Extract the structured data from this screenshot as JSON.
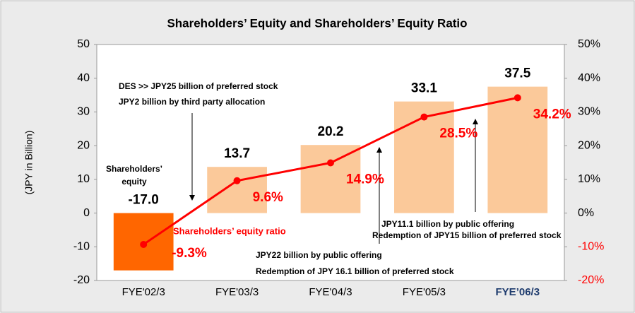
{
  "chart_data": {
    "type": "bar_line",
    "title": "Shareholders’ Equity and Shareholders’ Equity Ratio",
    "y_label": "(JPY in Billion)",
    "categories": [
      "FYE'02/3",
      "FYE'03/3",
      "FYE'04/3",
      "FYE'05/3",
      "FYE’06/3"
    ],
    "category_label_colors": [
      "#000000",
      "#000000",
      "#000000",
      "#000000",
      "#1f3c6e"
    ],
    "series": [
      {
        "name": "Shareholders’ equity",
        "type": "bar",
        "colors": [
          "#ff6600",
          "#fbc99a",
          "#fbc99a",
          "#fbc99a",
          "#fbc99a"
        ],
        "values": [
          -17.0,
          13.7,
          20.2,
          33.1,
          37.5
        ],
        "value_labels": [
          "-17.0",
          "13.7",
          "20.2",
          "33.1",
          "37.5"
        ]
      },
      {
        "name": "Shareholders’ equity ratio",
        "type": "line",
        "axis": "y2",
        "color": "#ff0000",
        "values": [
          -9.3,
          9.6,
          14.9,
          28.5,
          34.2
        ],
        "value_labels": [
          "-9.3%",
          "9.6%",
          "14.9%",
          "28.5%",
          "34.2%"
        ]
      }
    ],
    "ylim": [
      -20,
      50
    ],
    "yticks": [
      50,
      40,
      30,
      20,
      10,
      0,
      -10,
      -20
    ],
    "y2lim": [
      -20,
      50
    ],
    "y2ticks": [
      {
        "value": 50,
        "label": "50%"
      },
      {
        "value": 40,
        "label": "40%"
      },
      {
        "value": 30,
        "label": "30%"
      },
      {
        "value": 20,
        "label": "20%"
      },
      {
        "value": 10,
        "label": "10%"
      },
      {
        "value": 0,
        "label": "0%"
      },
      {
        "value": -10,
        "label": "-10%"
      },
      {
        "value": -20,
        "label": "-20%"
      }
    ],
    "y2tick_colors": [
      "#000000",
      "#000000",
      "#000000",
      "#000000",
      "#000000",
      "#000000",
      "#ff0000",
      "#ff0000"
    ],
    "annotations": [
      "DES >> JPY25 billion of preferred stock",
      "JPY2 billion by third party allocation",
      "Shareholders’",
      "equity",
      "JPY22 billion by public offering",
      "Redemption of JPY 16.1 billion of preferred stock",
      "JPY11.1 billion by public offering",
      "Redemption of JPY15 billion of preferred stock"
    ]
  }
}
